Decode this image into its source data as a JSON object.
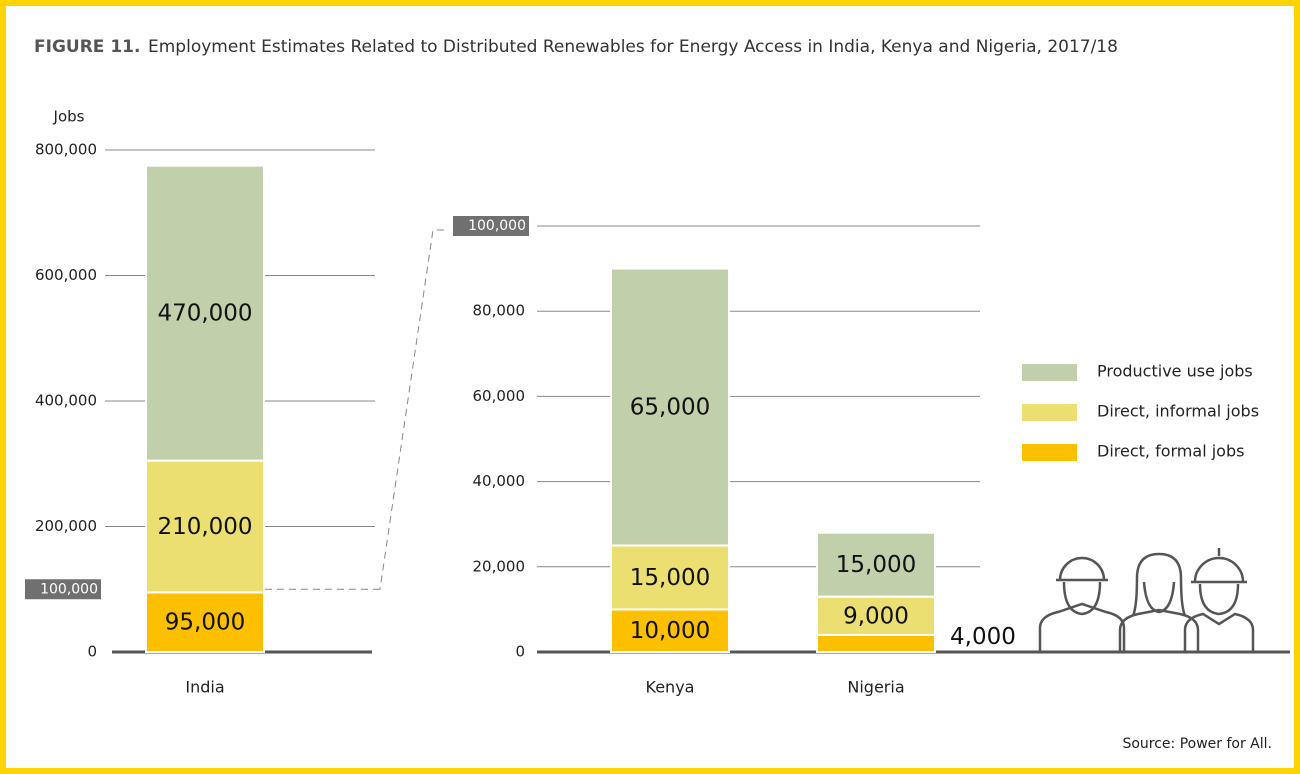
{
  "figure_label": "FIGURE 11.",
  "title": "Employment Estimates Related to Distributed Renewables for Energy Access in India, Kenya and Nigeria, 2017/18",
  "source": "Source: Power for All.",
  "legend": {
    "position": "right",
    "items": [
      {
        "name": "Direct, formal jobs",
        "color": "#fcc000"
      },
      {
        "name": "Direct, informal jobs",
        "color": "#ebdf72"
      },
      {
        "name": "Productive use jobs",
        "color": "#c1cfaa"
      }
    ]
  },
  "chart_data": [
    {
      "type": "bar",
      "stacked": true,
      "y_label": "Jobs",
      "grid": true,
      "categories": [
        "India"
      ],
      "series": [
        {
          "values": [
            95000
          ],
          "value_labels": [
            "95,000"
          ]
        },
        {
          "values": [
            210000
          ],
          "value_labels": [
            "210,000"
          ]
        },
        {
          "values": [
            470000
          ],
          "value_labels": [
            "470,000"
          ]
        }
      ],
      "ylim": [
        0,
        800000
      ],
      "yticks": [
        0,
        {
          "value": 200000,
          "label": "200,000"
        },
        {
          "value": 400000,
          "label": "400,000"
        },
        {
          "value": 600000,
          "label": "600,000"
        },
        {
          "value": 800000,
          "label": "800,000"
        }
      ],
      "zoom_tick": {
        "value": 100000,
        "label": "100,000"
      }
    },
    {
      "type": "bar",
      "stacked": true,
      "grid": true,
      "categories": [
        "Kenya",
        "Nigeria"
      ],
      "series": [
        {
          "values": [
            10000,
            4000
          ],
          "value_labels": [
            "10,000",
            "4,000"
          ]
        },
        {
          "values": [
            15000,
            9000
          ],
          "value_labels": [
            "15,000",
            "9,000"
          ]
        },
        {
          "values": [
            65000,
            15000
          ],
          "value_labels": [
            "65,000",
            "15,000"
          ]
        }
      ],
      "ylim": [
        0,
        100000
      ],
      "yticks": [
        0,
        {
          "value": 20000,
          "label": "20,000"
        },
        {
          "value": 40000,
          "label": "40,000"
        },
        {
          "value": 60000,
          "label": "60,000"
        },
        {
          "value": 80000,
          "label": "80,000"
        }
      ],
      "zoom_tick": {
        "value": 100000,
        "label": "100,000"
      }
    }
  ]
}
